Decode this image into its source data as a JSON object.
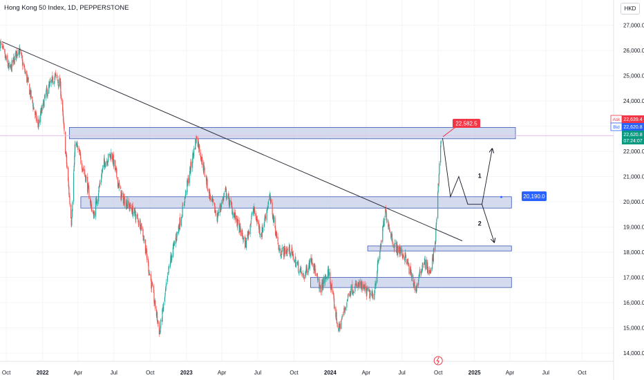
{
  "header": {
    "title": "Hong Kong 50 Index, 1D, PEPPERSTONE",
    "currency": "HKD"
  },
  "price_tags": {
    "ask_label": "Ask",
    "ask_value": "22,639.4",
    "bid_label": "Bid",
    "bid_value": "22,620.8",
    "last_value": "22,620.8",
    "countdown": "07:24:07",
    "callout_high": "22,582.5",
    "callout_mid": "20,190.0"
  },
  "annotations": {
    "scenario_1": "1",
    "scenario_2": "2"
  },
  "colors": {
    "up": "#26a69a",
    "down": "#ef5350",
    "zone_fill": "#c5cfe8",
    "zone_stroke": "#3b55b5",
    "bid_line": "#e1bee7",
    "tag_red": "#f23645",
    "tag_blue": "#2962ff",
    "tag_green": "#089981",
    "trendline": "#2a2e39"
  },
  "chart_data": {
    "type": "candlestick",
    "series_name": "Hong Kong 50 Index",
    "y_axis": {
      "position": "right",
      "range": [
        13700,
        27400
      ],
      "ticks": [
        14000,
        15000,
        16000,
        17000,
        18000,
        19000,
        20000,
        21000,
        22000,
        23000,
        24000,
        25000,
        26000,
        27000
      ],
      "tick_labels": [
        "14,000.0",
        "15,000.0",
        "16,000.0",
        "17,000.0",
        "18,000.0",
        "19,000.0",
        "20,000.0",
        "21,000.0",
        "22,000.0",
        "23,000.0",
        "24,000.0",
        "25,000.0",
        "26,000.0",
        "27,000.0"
      ]
    },
    "x_axis": {
      "range": [
        "2021-09-15",
        "2025-12-20"
      ],
      "ticks": [
        {
          "date": "2021-10-01",
          "label": "Oct"
        },
        {
          "date": "2022-01-01",
          "label": "2022"
        },
        {
          "date": "2022-04-01",
          "label": "Apr"
        },
        {
          "date": "2022-07-01",
          "label": "Jul"
        },
        {
          "date": "2022-10-01",
          "label": "Oct"
        },
        {
          "date": "2023-01-01",
          "label": "2023"
        },
        {
          "date": "2023-04-01",
          "label": "Apr"
        },
        {
          "date": "2023-07-01",
          "label": "Jul"
        },
        {
          "date": "2023-10-01",
          "label": "Oct"
        },
        {
          "date": "2024-01-01",
          "label": "2024"
        },
        {
          "date": "2024-04-01",
          "label": "Apr"
        },
        {
          "date": "2024-07-01",
          "label": "Jul"
        },
        {
          "date": "2024-10-01",
          "label": "Oct"
        },
        {
          "date": "2025-01-01",
          "label": "2025"
        },
        {
          "date": "2025-04-01",
          "label": "Apr"
        },
        {
          "date": "2025-07-01",
          "label": "Jul"
        },
        {
          "date": "2025-10-01",
          "label": "Oct"
        }
      ]
    },
    "price_path": [
      [
        "2021-09-15",
        26300
      ],
      [
        "2021-10-10",
        25200
      ],
      [
        "2021-11-01",
        26100
      ],
      [
        "2021-11-25",
        24700
      ],
      [
        "2021-12-20",
        23000
      ],
      [
        "2022-01-10",
        24300
      ],
      [
        "2022-02-01",
        25000
      ],
      [
        "2022-02-15",
        24600
      ],
      [
        "2022-03-15",
        19200
      ],
      [
        "2022-03-25",
        22400
      ],
      [
        "2022-04-20",
        21000
      ],
      [
        "2022-05-10",
        19400
      ],
      [
        "2022-06-05",
        21500
      ],
      [
        "2022-06-25",
        21900
      ],
      [
        "2022-07-20",
        20200
      ],
      [
        "2022-08-20",
        19600
      ],
      [
        "2022-09-10",
        19000
      ],
      [
        "2022-09-28",
        17300
      ],
      [
        "2022-10-25",
        14800
      ],
      [
        "2022-11-20",
        17600
      ],
      [
        "2022-12-20",
        19500
      ],
      [
        "2023-01-27",
        22600
      ],
      [
        "2023-02-28",
        20300
      ],
      [
        "2023-03-20",
        19400
      ],
      [
        "2023-04-10",
        20400
      ],
      [
        "2023-05-31",
        18300
      ],
      [
        "2023-06-20",
        19700
      ],
      [
        "2023-07-10",
        18700
      ],
      [
        "2023-07-31",
        20200
      ],
      [
        "2023-08-25",
        18000
      ],
      [
        "2023-09-20",
        18100
      ],
      [
        "2023-10-25",
        17000
      ],
      [
        "2023-11-15",
        17800
      ],
      [
        "2023-12-05",
        16500
      ],
      [
        "2023-12-28",
        17200
      ],
      [
        "2024-01-22",
        14900
      ],
      [
        "2024-02-20",
        16500
      ],
      [
        "2024-03-15",
        16700
      ],
      [
        "2024-04-19",
        16200
      ],
      [
        "2024-05-20",
        19600
      ],
      [
        "2024-06-10",
        18300
      ],
      [
        "2024-07-10",
        17800
      ],
      [
        "2024-08-05",
        16500
      ],
      [
        "2024-08-25",
        17700
      ],
      [
        "2024-09-11",
        17100
      ],
      [
        "2024-09-24",
        18500
      ],
      [
        "2024-10-08",
        22600
      ]
    ],
    "zones": [
      {
        "from": "2022-03-10",
        "to": "2025-04-15",
        "low": 22500,
        "high": 22950
      },
      {
        "from": "2022-04-08",
        "to": "2025-04-05",
        "low": 19750,
        "high": 20200
      },
      {
        "from": "2024-04-05",
        "to": "2025-04-05",
        "low": 18050,
        "high": 18250
      },
      {
        "from": "2023-11-12",
        "to": "2025-04-05",
        "low": 16600,
        "high": 17000
      }
    ],
    "trendline": [
      [
        "2021-09-20",
        26350
      ],
      [
        "2024-12-01",
        18450
      ]
    ],
    "horizontal_line": 22620.8,
    "projections": [
      {
        "name": "scenario_1",
        "points": [
          [
            "2024-10-12",
            22520
          ],
          [
            "2024-11-01",
            20200
          ],
          [
            "2024-11-22",
            21000
          ],
          [
            "2024-12-15",
            19900
          ],
          [
            "2025-01-20",
            19900
          ],
          [
            "2025-02-15",
            22100
          ]
        ]
      },
      {
        "name": "scenario_2",
        "points": [
          [
            "2025-01-20",
            19900
          ],
          [
            "2025-02-20",
            18400
          ]
        ]
      }
    ],
    "markers": {
      "callout_high": {
        "date": "2024-10-13",
        "price": 22582.5
      },
      "callout_mid": {
        "date": "2025-03-10",
        "price": 20190.0
      },
      "label_1": {
        "date": "2025-01-10",
        "price": 20950
      },
      "label_2": {
        "date": "2025-01-10",
        "price": 19050
      }
    }
  }
}
